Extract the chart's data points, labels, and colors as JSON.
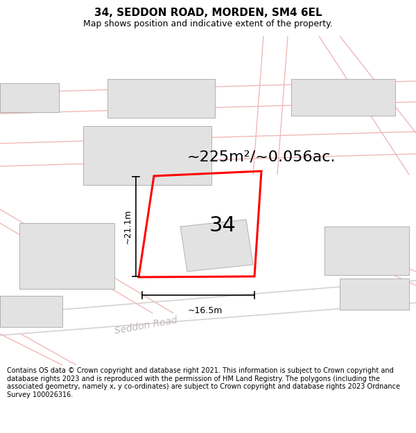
{
  "title": "34, SEDDON ROAD, MORDEN, SM4 6EL",
  "subtitle": "Map shows position and indicative extent of the property.",
  "area_text": "~225m²/~0.056ac.",
  "number_label": "34",
  "dim_width": "~16.5m",
  "dim_height": "~21.1m",
  "road_label": "Seddon Road",
  "footer": "Contains OS data © Crown copyright and database right 2021. This information is subject to Crown copyright and database rights 2023 and is reproduced with the permission of HM Land Registry. The polygons (including the associated geometry, namely x, y co-ordinates) are subject to Crown copyright and database rights 2023 Ordnance Survey 100026316.",
  "bg_color": "#ffffff",
  "map_bg": "#ffffff",
  "plot_color": "#ff0000",
  "building_color": "#e2e2e2",
  "building_edge": "#b0b0b0",
  "road_line_color": "#f0b8b8",
  "road_line_color2": "#d8d0d0",
  "title_fontsize": 11,
  "subtitle_fontsize": 9,
  "footer_fontsize": 7,
  "area_fontsize": 16,
  "number_fontsize": 22,
  "dim_fontsize": 9,
  "road_label_fontsize": 10,
  "road_label_color": "#c0b8b8"
}
